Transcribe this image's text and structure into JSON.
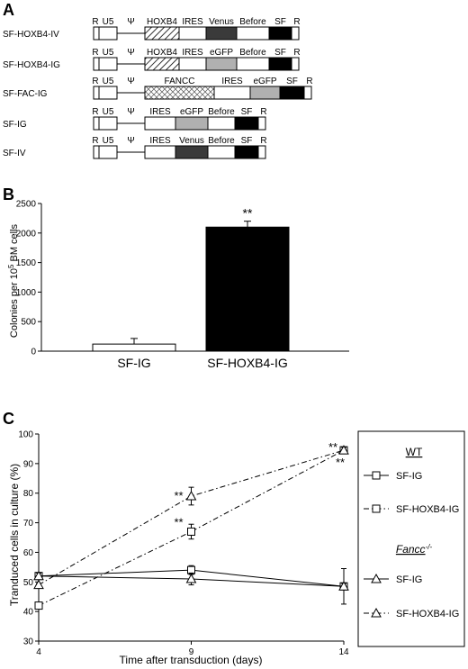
{
  "panel_a": {
    "panel_label": "A",
    "constructs": [
      {
        "name": "SF-HOXB4-IV",
        "segments": [
          {
            "type": "blank"
          },
          {
            "type": "blank"
          },
          {
            "type": "line"
          },
          {
            "type": "hatch",
            "label": "HOXB4"
          },
          {
            "type": "blank",
            "label": "IRES"
          },
          {
            "type": "dark",
            "label": "Venus"
          },
          {
            "type": "blank",
            "label": "Before"
          },
          {
            "type": "black"
          },
          {
            "type": "blank"
          }
        ]
      },
      {
        "name": "SF-HOXB4-IG",
        "segments": [
          {
            "type": "blank"
          },
          {
            "type": "blank"
          },
          {
            "type": "line"
          },
          {
            "type": "hatch",
            "label": "HOXB4"
          },
          {
            "type": "blank",
            "label": "IRES"
          },
          {
            "type": "grey",
            "label": "eGFP"
          },
          {
            "type": "blank",
            "label": "Before"
          },
          {
            "type": "black"
          },
          {
            "type": "blank"
          }
        ]
      },
      {
        "name": "SF-FAC-IG",
        "segments": [
          {
            "type": "blank"
          },
          {
            "type": "blank"
          },
          {
            "type": "line"
          },
          {
            "type": "cross",
            "label": "FANCC"
          },
          {
            "type": "blank",
            "label": "IRES"
          },
          {
            "type": "grey",
            "label": "eGFP"
          },
          {
            "type": "black"
          },
          {
            "type": "blank"
          }
        ]
      },
      {
        "name": "SF-IG",
        "segments": [
          {
            "type": "blank"
          },
          {
            "type": "blank"
          },
          {
            "type": "line"
          },
          {
            "type": "blank",
            "label": "IRES"
          },
          {
            "type": "grey",
            "label": "eGFP"
          },
          {
            "type": "blank",
            "label": "Before"
          },
          {
            "type": "black"
          },
          {
            "type": "blank"
          }
        ]
      },
      {
        "name": "SF-IV",
        "segments": [
          {
            "type": "blank"
          },
          {
            "type": "blank"
          },
          {
            "type": "line"
          },
          {
            "type": "blank",
            "label": "IRES"
          },
          {
            "type": "dark",
            "label": "Venus"
          },
          {
            "type": "blank",
            "label": "Before"
          },
          {
            "type": "black"
          },
          {
            "type": "blank"
          }
        ]
      }
    ],
    "labels": {
      "r": "R",
      "u5": "U5",
      "psi": "Ψ",
      "sf": "SF"
    },
    "colors": {
      "blank": "#ffffff",
      "grey": "#b0b0b0",
      "dark": "#3a3a3a",
      "black": "#000000"
    }
  },
  "chart_data": [
    {
      "panel_label": "B",
      "type": "bar",
      "categories": [
        "SF-IG",
        "SF-HOXB4-IG"
      ],
      "values": [
        120,
        2100
      ],
      "errors": [
        95,
        100
      ],
      "ylabel_parts": [
        "Colonies per 10",
        "5",
        " BM cells"
      ],
      "ylim": [
        0,
        2500
      ],
      "yticks": [
        "0",
        "500",
        "1000",
        "1500",
        "2000",
        "2500"
      ],
      "annotation": "**",
      "colors": [
        "#ffffff",
        "#000000"
      ]
    },
    {
      "panel_label": "C",
      "type": "line",
      "x": [
        4,
        9,
        14
      ],
      "xticks": [
        "4",
        "9",
        "14"
      ],
      "xlabel": "Time after transduction (days)",
      "ylabel": "Tranduced cells in culture (%)",
      "ylim": [
        30,
        100
      ],
      "yticks": [
        "30",
        "40",
        "50",
        "60",
        "70",
        "80",
        "90",
        "100"
      ],
      "series": [
        {
          "group": "WT",
          "name": "SF-IG",
          "marker": "square",
          "dash": "solid",
          "values": [
            52,
            54,
            48.5
          ],
          "errors": [
            1,
            1.5,
            6
          ]
        },
        {
          "group": "WT",
          "name": "SF-HOXB4-IG",
          "marker": "square",
          "dash": "dashdot",
          "values": [
            42,
            67,
            94.5
          ],
          "errors": [
            0.5,
            2.5,
            1
          ]
        },
        {
          "group": "Fancc",
          "name": "SF-IG",
          "marker": "triangle",
          "dash": "solid",
          "values": [
            52,
            51,
            48.5
          ],
          "errors": [
            1,
            2,
            1
          ]
        },
        {
          "group": "Fancc",
          "name": "SF-HOXB4-IG",
          "marker": "triangle",
          "dash": "dashdot",
          "values": [
            49,
            79,
            94.5
          ],
          "errors": [
            0.5,
            3,
            1
          ]
        }
      ],
      "annotations": [
        "**",
        "**",
        "**",
        "**"
      ],
      "legend": {
        "wt_title": "WT",
        "fancc_title": "Fancc",
        "fancc_superscript": "-/-",
        "position": "right"
      }
    }
  ]
}
